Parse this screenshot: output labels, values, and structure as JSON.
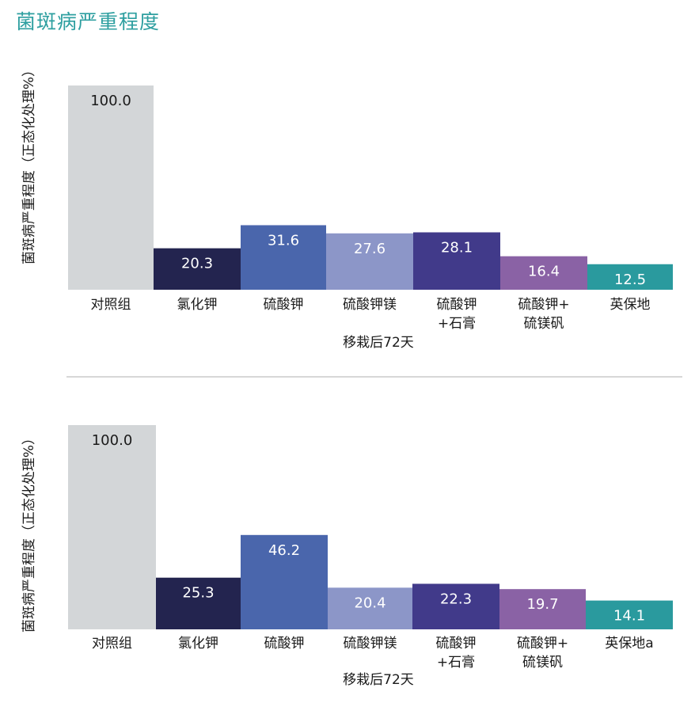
{
  "title": "菌斑病严重程度",
  "colors": {
    "title": "#2e9fa0",
    "bars": [
      "#d3d6d8",
      "#23244f",
      "#4a66ac",
      "#8c96c8",
      "#413a8a",
      "#8a62a5",
      "#2a9a9e"
    ],
    "label_dark": "#1a1a1a",
    "label_light": "#ffffff",
    "divider": "#bfbfbf"
  },
  "chart_data": [
    {
      "type": "bar",
      "ylabel": "菌斑病严重程度（正态化处理%）",
      "xlabel": "移栽后72天",
      "categories": [
        [
          "对照组"
        ],
        [
          "氯化钾"
        ],
        [
          "硫酸钾"
        ],
        [
          "硫酸钾镁"
        ],
        [
          "硫酸钾",
          "+石膏"
        ],
        [
          "硫酸钾+",
          "硫镁矾"
        ],
        [
          "英保地"
        ]
      ],
      "values": [
        100.0,
        20.3,
        31.6,
        27.6,
        28.1,
        16.4,
        12.5
      ],
      "labels": [
        "100.0",
        "20.3",
        "31.6",
        "27.6",
        "28.1",
        "16.4",
        "12.5"
      ],
      "ylim": [
        0,
        100
      ],
      "grid": false,
      "legend": "none"
    },
    {
      "type": "bar",
      "ylabel": "菌斑病严重程度（正态化处理%）",
      "xlabel": "移栽后72天",
      "categories": [
        [
          "对照组"
        ],
        [
          "氯化钾"
        ],
        [
          "硫酸钾"
        ],
        [
          "硫酸钾镁"
        ],
        [
          "硫酸钾",
          "+石膏"
        ],
        [
          "硫酸钾+",
          "硫镁矾"
        ],
        [
          "英保地a"
        ]
      ],
      "values": [
        100.0,
        25.3,
        46.2,
        20.4,
        22.3,
        19.7,
        14.1
      ],
      "labels": [
        "100.0",
        "25.3",
        "46.2",
        "20.4",
        "22.3",
        "19.7",
        "14.1"
      ],
      "ylim": [
        0,
        100
      ],
      "grid": false,
      "legend": "none"
    }
  ]
}
